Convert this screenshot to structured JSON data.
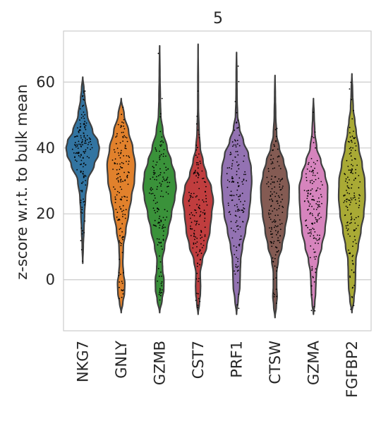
{
  "chart_data": {
    "type": "violin",
    "title": "5",
    "xlabel": "",
    "ylabel": "z-score w.r.t. to bulk mean",
    "ylim": [
      -15.5,
      75.5
    ],
    "yticks": [
      0,
      20,
      40,
      60
    ],
    "grid": "horizontal",
    "categories": [
      "NKG7",
      "GNLY",
      "GZMB",
      "CST7",
      "PRF1",
      "CTSW",
      "GZMA",
      "FGFBP2"
    ],
    "colors": [
      "#3274a1",
      "#e1812c",
      "#3a923a",
      "#c03d3e",
      "#9372b2",
      "#845b53",
      "#d684bd",
      "#a9aa35"
    ],
    "violins": [
      {
        "name": "NKG7",
        "min": 5.0,
        "max": 61.5,
        "profile": [
          [
            5,
            0.0
          ],
          [
            10,
            0.03
          ],
          [
            15,
            0.07
          ],
          [
            20,
            0.11
          ],
          [
            25,
            0.17
          ],
          [
            30,
            0.3
          ],
          [
            35,
            0.7
          ],
          [
            38,
            0.95
          ],
          [
            40,
            1.0
          ],
          [
            42,
            0.92
          ],
          [
            45,
            0.6
          ],
          [
            50,
            0.28
          ],
          [
            55,
            0.13
          ],
          [
            58,
            0.07
          ],
          [
            61.5,
            0.0
          ]
        ]
      },
      {
        "name": "GNLY",
        "min": -10.0,
        "max": 55.0,
        "profile": [
          [
            -10,
            0.0
          ],
          [
            -7,
            0.1
          ],
          [
            -4,
            0.2
          ],
          [
            -1,
            0.22
          ],
          [
            2,
            0.14
          ],
          [
            5,
            0.1
          ],
          [
            10,
            0.13
          ],
          [
            15,
            0.28
          ],
          [
            20,
            0.45
          ],
          [
            25,
            0.62
          ],
          [
            30,
            0.8
          ],
          [
            35,
            0.85
          ],
          [
            40,
            0.7
          ],
          [
            45,
            0.45
          ],
          [
            50,
            0.18
          ],
          [
            55,
            0.0
          ]
        ]
      },
      {
        "name": "GZMB",
        "min": -10.0,
        "max": 71.0,
        "profile": [
          [
            -10,
            0.0
          ],
          [
            -6,
            0.15
          ],
          [
            -3,
            0.25
          ],
          [
            0,
            0.26
          ],
          [
            3,
            0.18
          ],
          [
            6,
            0.16
          ],
          [
            10,
            0.3
          ],
          [
            15,
            0.52
          ],
          [
            20,
            0.72
          ],
          [
            25,
            0.92
          ],
          [
            28,
            1.0
          ],
          [
            32,
            0.92
          ],
          [
            36,
            0.7
          ],
          [
            40,
            0.45
          ],
          [
            45,
            0.2
          ],
          [
            50,
            0.07
          ],
          [
            55,
            0.04
          ],
          [
            62,
            0.02
          ],
          [
            71,
            0.0
          ]
        ]
      },
      {
        "name": "CST7",
        "min": -10.5,
        "max": 71.5,
        "profile": [
          [
            -10.5,
            0.0
          ],
          [
            -7,
            0.08
          ],
          [
            -4,
            0.14
          ],
          [
            -2,
            0.15
          ],
          [
            2,
            0.13
          ],
          [
            6,
            0.26
          ],
          [
            10,
            0.52
          ],
          [
            15,
            0.72
          ],
          [
            20,
            0.82
          ],
          [
            24,
            0.92
          ],
          [
            28,
            0.8
          ],
          [
            32,
            0.5
          ],
          [
            36,
            0.3
          ],
          [
            40,
            0.13
          ],
          [
            45,
            0.06
          ],
          [
            52,
            0.02
          ],
          [
            60,
            0.015
          ],
          [
            71.5,
            0.0
          ]
        ]
      },
      {
        "name": "PRF1",
        "min": -10.5,
        "max": 69.0,
        "profile": [
          [
            -10.5,
            0.0
          ],
          [
            -6,
            0.1
          ],
          [
            -2,
            0.2
          ],
          [
            2,
            0.22
          ],
          [
            6,
            0.25
          ],
          [
            10,
            0.36
          ],
          [
            15,
            0.55
          ],
          [
            20,
            0.75
          ],
          [
            25,
            0.85
          ],
          [
            30,
            0.92
          ],
          [
            34,
            0.88
          ],
          [
            38,
            0.72
          ],
          [
            42,
            0.42
          ],
          [
            46,
            0.18
          ],
          [
            50,
            0.06
          ],
          [
            55,
            0.03
          ],
          [
            62,
            0.02
          ],
          [
            69,
            0.0
          ]
        ]
      },
      {
        "name": "CTSW",
        "min": -11.5,
        "max": 62.0,
        "profile": [
          [
            -11.5,
            0.0
          ],
          [
            -8,
            0.08
          ],
          [
            -5,
            0.13
          ],
          [
            -2,
            0.1
          ],
          [
            2,
            0.1
          ],
          [
            6,
            0.2
          ],
          [
            10,
            0.42
          ],
          [
            15,
            0.6
          ],
          [
            20,
            0.75
          ],
          [
            25,
            0.85
          ],
          [
            28,
            0.86
          ],
          [
            32,
            0.72
          ],
          [
            36,
            0.52
          ],
          [
            40,
            0.26
          ],
          [
            44,
            0.1
          ],
          [
            50,
            0.04
          ],
          [
            56,
            0.02
          ],
          [
            62,
            0.0
          ]
        ]
      },
      {
        "name": "GZMA",
        "min": -10.5,
        "max": 55.0,
        "profile": [
          [
            -10.5,
            0.0
          ],
          [
            -7,
            0.08
          ],
          [
            -4,
            0.13
          ],
          [
            -1,
            0.15
          ],
          [
            2,
            0.18
          ],
          [
            6,
            0.3
          ],
          [
            10,
            0.5
          ],
          [
            15,
            0.7
          ],
          [
            20,
            0.8
          ],
          [
            25,
            0.85
          ],
          [
            28,
            0.86
          ],
          [
            32,
            0.7
          ],
          [
            36,
            0.45
          ],
          [
            40,
            0.2
          ],
          [
            45,
            0.08
          ],
          [
            50,
            0.04
          ],
          [
            55,
            0.0
          ]
        ]
      },
      {
        "name": "FGFBP2",
        "min": -10.0,
        "max": 62.5,
        "profile": [
          [
            -10,
            0.0
          ],
          [
            -6,
            0.12
          ],
          [
            -2,
            0.2
          ],
          [
            2,
            0.22
          ],
          [
            6,
            0.24
          ],
          [
            10,
            0.38
          ],
          [
            15,
            0.55
          ],
          [
            20,
            0.72
          ],
          [
            25,
            0.8
          ],
          [
            30,
            0.78
          ],
          [
            35,
            0.62
          ],
          [
            40,
            0.42
          ],
          [
            45,
            0.26
          ],
          [
            48,
            0.18
          ],
          [
            52,
            0.08
          ],
          [
            57,
            0.04
          ],
          [
            62.5,
            0.0
          ]
        ]
      }
    ]
  }
}
